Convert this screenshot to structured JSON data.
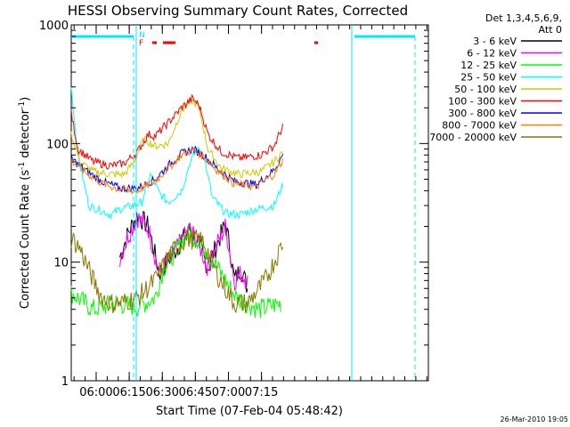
{
  "chart_data": {
    "type": "line",
    "title": "HESSI Observing Summary Count Rates, Corrected",
    "xlabel": "Start Time (07-Feb-04 05:48:42)",
    "ylabel": "Corrected Count Rate (s",
    "ylabel_sup": "-1",
    "ylabel_mid": " detector",
    "ylabel_end": ")",
    "yscale": "log",
    "ylim": [
      1,
      1000
    ],
    "xlim": [
      0,
      162
    ],
    "x_unit": "minutes after 05:48:42",
    "y_ticks": [
      {
        "value": 1,
        "label": "1"
      },
      {
        "value": 10,
        "label": "10"
      },
      {
        "value": 100,
        "label": "100"
      },
      {
        "value": 1000,
        "label": "1000"
      }
    ],
    "x_ticks": [
      {
        "value": 11.3,
        "label": "06:00"
      },
      {
        "value": 26.3,
        "label": "06:15"
      },
      {
        "value": 41.3,
        "label": "06:30"
      },
      {
        "value": 56.3,
        "label": "06:45"
      },
      {
        "value": 71.3,
        "label": "07:00"
      },
      {
        "value": 86.3,
        "label": "07:15"
      }
    ],
    "legend_header": [
      "Det 1,3,4,5,6,9,",
      "Att 0"
    ],
    "flags": [
      {
        "label": "N",
        "color": "#00e8ff"
      },
      {
        "label": "F",
        "color": "#ff0000"
      }
    ],
    "timestamp": "26-Mar-2010 19:05",
    "series": [
      {
        "name": "3 - 6 keV",
        "color": "#000000",
        "x": [
          22,
          26,
          30,
          35,
          40,
          45,
          50,
          54,
          58,
          62,
          66,
          70,
          72,
          74,
          77,
          80
        ],
        "values": [
          11,
          18,
          25,
          20,
          8,
          11,
          15,
          19,
          14,
          9,
          14,
          21,
          13,
          7,
          9,
          6
        ]
      },
      {
        "name": "6 - 12 keV",
        "color": "#ff00ff",
        "x": [
          22,
          26,
          30,
          35,
          40,
          45,
          50,
          54,
          58,
          62,
          66,
          70,
          72,
          74,
          77,
          80
        ],
        "values": [
          11,
          17,
          24,
          19,
          8,
          11,
          15,
          19,
          14,
          9,
          14,
          20,
          12,
          7,
          8,
          7
        ]
      },
      {
        "name": "12 - 25 keV",
        "color": "#00ff00",
        "x": [
          0,
          10,
          20,
          30,
          38,
          42,
          48,
          52,
          57,
          62,
          68,
          75,
          85,
          95
        ],
        "values": [
          5.5,
          4,
          4.5,
          4.2,
          5,
          9,
          13,
          17,
          16,
          12,
          8,
          5,
          4,
          4.5
        ]
      },
      {
        "name": "25 - 50 keV",
        "color": "#00ffff",
        "x": [
          0,
          3,
          8,
          12,
          18,
          22,
          28,
          32,
          36,
          40,
          44,
          50,
          54,
          57,
          60,
          64,
          70,
          76,
          84,
          92,
          96
        ],
        "values": [
          300,
          80,
          30,
          28,
          25,
          28,
          30,
          32,
          55,
          38,
          32,
          40,
          70,
          90,
          80,
          35,
          26,
          25,
          28,
          30,
          45
        ]
      },
      {
        "name": "50 - 100 keV",
        "color": "#cccc00",
        "x": [
          0,
          4,
          10,
          18,
          24,
          28,
          33,
          38,
          44,
          50,
          55,
          58,
          62,
          68,
          76,
          86,
          92,
          96
        ],
        "values": [
          120,
          70,
          58,
          55,
          55,
          68,
          110,
          95,
          100,
          190,
          230,
          200,
          90,
          62,
          55,
          58,
          70,
          85
        ]
      },
      {
        "name": "100 - 300 keV",
        "color": "#ff0000",
        "x": [
          0,
          3,
          10,
          18,
          24,
          30,
          35,
          38,
          44,
          50,
          55,
          58,
          62,
          68,
          76,
          86,
          92,
          96
        ],
        "values": [
          180,
          90,
          70,
          65,
          68,
          85,
          120,
          115,
          150,
          200,
          240,
          210,
          120,
          85,
          75,
          80,
          95,
          140
        ]
      },
      {
        "name": "300 - 800 keV",
        "color": "#0000ff",
        "x": [
          0,
          6,
          14,
          22,
          30,
          38,
          44,
          50,
          55,
          60,
          66,
          74,
          84,
          92,
          96
        ],
        "values": [
          75,
          60,
          48,
          42,
          42,
          50,
          65,
          82,
          90,
          80,
          62,
          48,
          45,
          60,
          80
        ]
      },
      {
        "name": "800 - 7000 keV",
        "color": "#ff7f00",
        "x": [
          0,
          6,
          14,
          22,
          30,
          38,
          44,
          50,
          55,
          60,
          66,
          74,
          84,
          92,
          96
        ],
        "values": [
          72,
          58,
          46,
          41,
          40,
          48,
          62,
          80,
          88,
          78,
          60,
          46,
          43,
          55,
          72
        ]
      },
      {
        "name": "7000 - 20000 keV",
        "color": "#8b7500",
        "x": [
          0,
          4,
          10,
          14,
          18,
          22,
          30,
          38,
          44,
          52,
          60,
          66,
          74,
          80,
          88,
          94,
          96
        ],
        "values": [
          16,
          13,
          7,
          5,
          4.5,
          4.5,
          5,
          7,
          11,
          16,
          15,
          8,
          4.5,
          4.5,
          7,
          12,
          15
        ]
      }
    ]
  }
}
